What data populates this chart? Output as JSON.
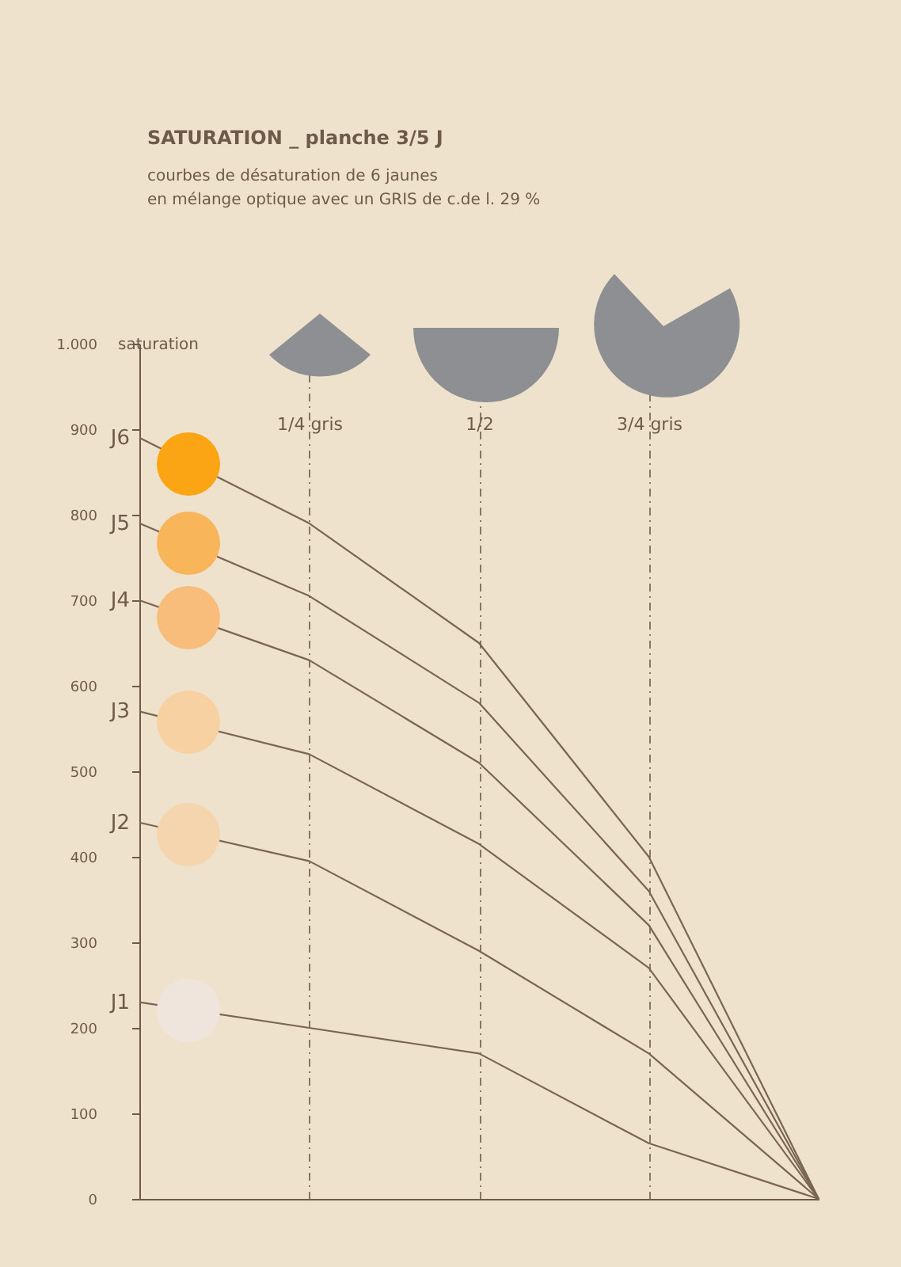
{
  "chart_data": {
    "type": "line",
    "title": "SATURATION _   planche   3/5 J",
    "subtitle": "courbes de désaturation de 6 jaunes\nen mélange optique avec un GRIS de c.de l.    29 %",
    "ylabel": "saturation",
    "categories": [
      null,
      "1/4 gris",
      "1/2",
      "3/4 gris",
      null
    ],
    "ylim": [
      0,
      1000
    ],
    "yticks": [
      0,
      100,
      200,
      300,
      400,
      500,
      600,
      700,
      800,
      900,
      {
        "value": 1000,
        "label": "1.000"
      }
    ],
    "grid": "x",
    "legend": "left",
    "series": [
      {
        "name": "J6",
        "color": "#7a6552",
        "values": [
          890,
          790,
          650,
          400,
          0
        ]
      },
      {
        "name": "J5",
        "color": "#7a6552",
        "values": [
          790,
          705,
          580,
          360,
          0
        ]
      },
      {
        "name": "J4",
        "color": "#7a6552",
        "values": [
          700,
          630,
          510,
          320,
          0
        ]
      },
      {
        "name": "J3",
        "color": "#7a6552",
        "values": [
          570,
          520,
          415,
          270,
          0
        ]
      },
      {
        "name": "J2",
        "color": "#7a6552",
        "values": [
          440,
          395,
          290,
          170,
          0
        ]
      },
      {
        "name": "J1",
        "color": "#7a6552",
        "values": [
          230,
          200,
          170,
          65,
          0
        ]
      }
    ]
  }
}
